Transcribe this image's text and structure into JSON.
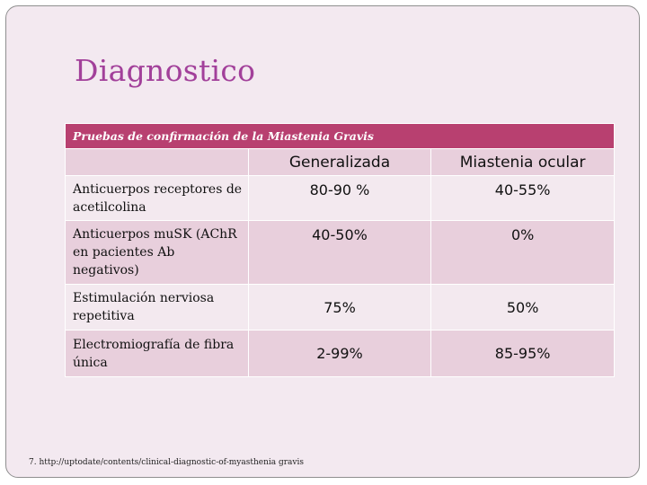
{
  "title": "Diagnostico",
  "table": {
    "caption": "Pruebas de confirmación de la Miastenia Gravis",
    "columns": [
      "",
      "Generalizada",
      "Miastenia ocular"
    ],
    "rows": [
      {
        "label": "Anticuerpos receptores de acetilcolina",
        "generalizada": "80-90 %",
        "ocular": "40-55%"
      },
      {
        "label": "Anticuerpos muSK (AChR en pacientes Ab negativos)",
        "generalizada": "40-50%",
        "ocular": "0%"
      },
      {
        "label": "Estimulación nerviosa repetitiva",
        "generalizada": "75%",
        "ocular": "50%"
      },
      {
        "label": "Electromiografía de fibra única",
        "generalizada": "2-99%",
        "ocular": "85-95%"
      }
    ]
  },
  "footnote": "7. http://uptodate/contents/clinical-diagnostic-of-myasthenia gravis",
  "colors": {
    "title": "#a2409a",
    "caption_bg": "#b84070",
    "row_dark": "#e8cfdc",
    "row_light": "#f3e9ef",
    "slide_bg": "#f3e9f0"
  }
}
